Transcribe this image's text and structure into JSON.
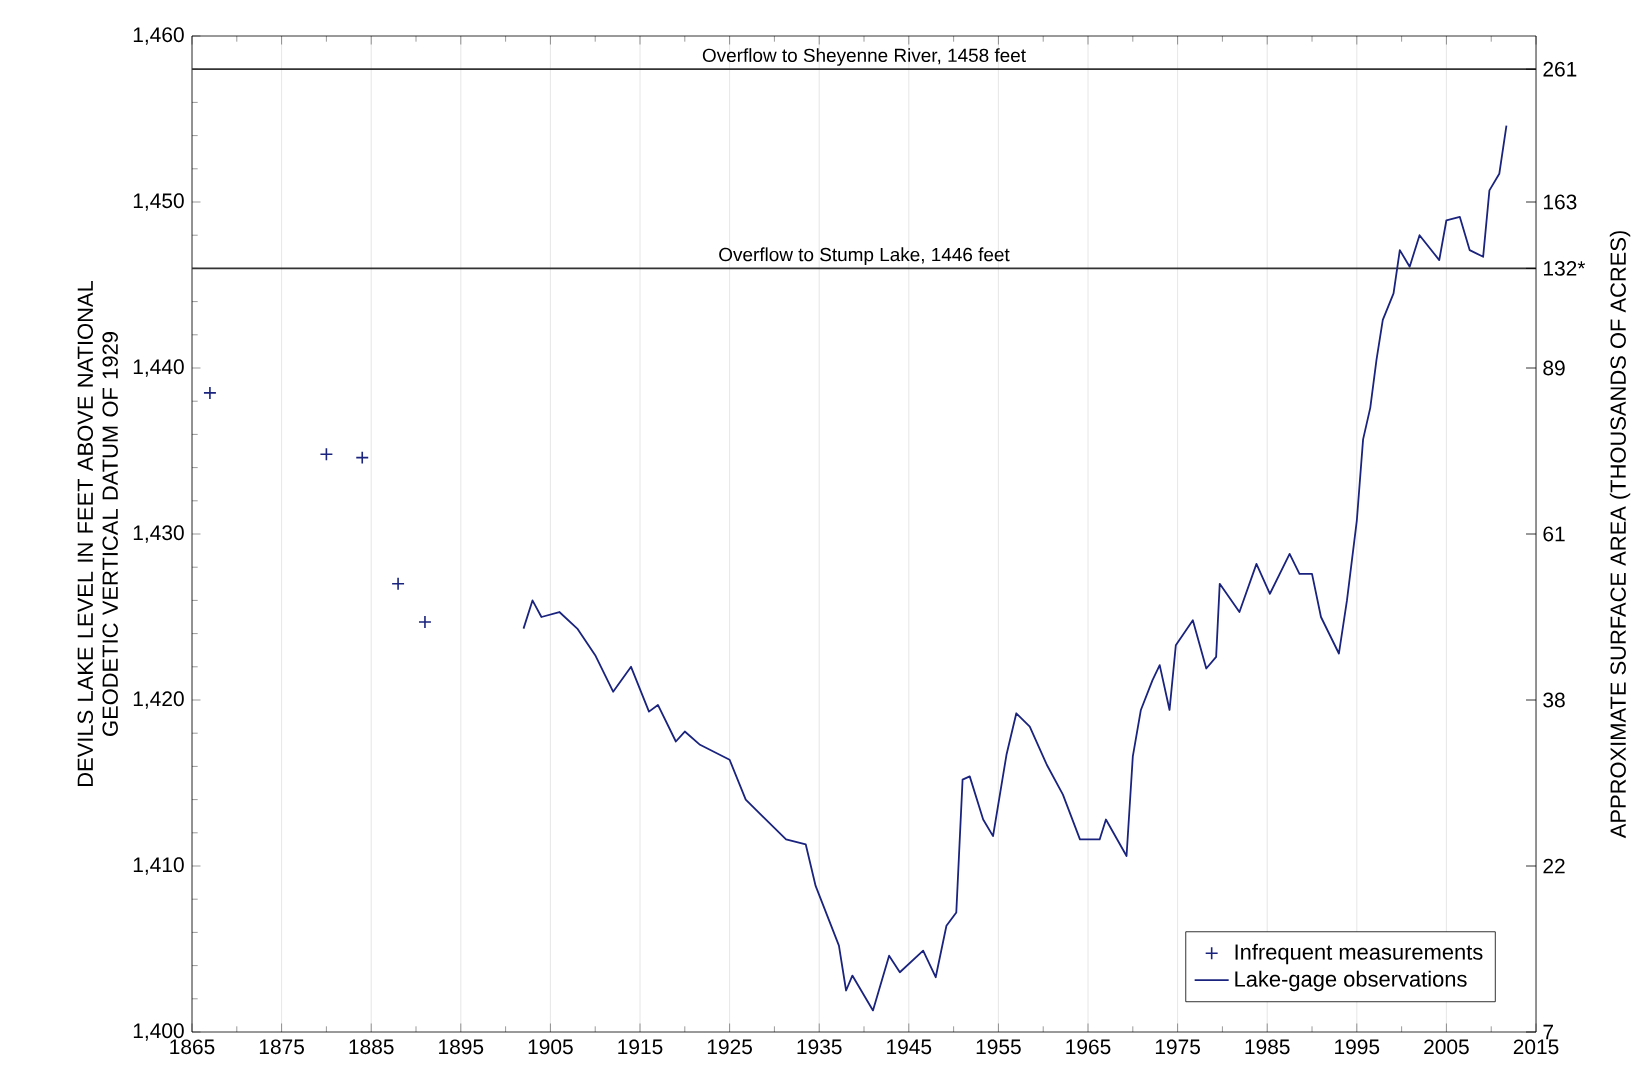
{
  "chart_data": {
    "type": "line",
    "xlabel": null,
    "ylabel": "DEVILS LAKE LEVEL IN FEET ABOVE NATIONAL GEODETIC VERTICAL DATUM OF 1929",
    "y2label": "APPROXIMATE SURFACE AREA (THOUSANDS OF ACRES)",
    "xlim": [
      1865,
      2015
    ],
    "xticks": [
      1865,
      1875,
      1885,
      1895,
      1905,
      1915,
      1925,
      1935,
      1945,
      1955,
      1965,
      1975,
      1985,
      1995,
      2005,
      2015
    ],
    "ylim": [
      1400,
      1460
    ],
    "yticks": [
      {
        "value": 1400,
        "label": "1,400"
      },
      {
        "value": 1410,
        "label": "1,410"
      },
      {
        "value": 1420,
        "label": "1,420"
      },
      {
        "value": 1430,
        "label": "1,430"
      },
      {
        "value": 1440,
        "label": "1,440"
      },
      {
        "value": 1450,
        "label": "1,450"
      },
      {
        "value": 1460,
        "label": "1,460"
      }
    ],
    "annotations": [
      "7",
      "22",
      "38",
      "61",
      "89",
      "132*",
      "163",
      "261"
    ],
    "grid": "x",
    "legend": "bottom right",
    "ref_lines": [
      {
        "axis": "y",
        "value": 1458,
        "label": "Overflow to Sheyenne River, 1458 feet",
        "color": "#333333"
      },
      {
        "axis": "y",
        "value": 1446,
        "label": "Overflow to Stump Lake, 1446 feet",
        "color": "#333333"
      }
    ],
    "series": [
      {
        "name": "Infrequent measurements",
        "type": "scatter",
        "marker": "cross",
        "color": "#1a237e",
        "x": [
          1867,
          1880,
          1884,
          1888,
          1891
        ],
        "values": [
          1438.5,
          1434.8,
          1434.6,
          1427,
          1424.7
        ]
      },
      {
        "name": "Lake-gage observations",
        "color": "#1a237e",
        "x": [
          1902,
          1903,
          1904,
          1906,
          1908,
          1910,
          1912,
          1914,
          1916,
          1917,
          1919,
          1920,
          1921.7,
          1925,
          1926.8,
          1931.3,
          1933.5,
          1934.6,
          1937.2,
          1938,
          1938.7,
          1941,
          1942.8,
          1944,
          1946.6,
          1948,
          1949.2,
          1950.3,
          1951,
          1951.8,
          1953.3,
          1954.4,
          1955.9,
          1957,
          1958.5,
          1960.4,
          1962.2,
          1964.1,
          1966.3,
          1967,
          1969.3,
          1970,
          1970.9,
          1972.2,
          1973,
          1974.1,
          1974.8,
          1976.7,
          1978.2,
          1979.3,
          1979.7,
          1981.9,
          1983.8,
          1985.3,
          1987.5,
          1988.6,
          1990,
          1991,
          1993,
          1993.9,
          1995,
          1995.7,
          1996.5,
          1997.2,
          1997.9,
          1999.1,
          1999.8,
          2000.9,
          2002,
          2004.2,
          2005,
          2006.5,
          2007.6,
          2009.1,
          2009.8,
          2010.9,
          2011.7
        ],
        "values": [
          1424.3,
          1426,
          1425,
          1425.3,
          1424.3,
          1422.7,
          1420.5,
          1422,
          1419.3,
          1419.7,
          1417.5,
          1418.1,
          1417.3,
          1416.4,
          1414,
          1411.6,
          1411.3,
          1408.8,
          1405.2,
          1402.5,
          1403.4,
          1401.3,
          1404.6,
          1403.6,
          1404.9,
          1403.3,
          1406.4,
          1407.2,
          1415.2,
          1415.4,
          1412.8,
          1411.8,
          1416.7,
          1419.2,
          1418.4,
          1416.1,
          1414.3,
          1411.6,
          1411.6,
          1412.8,
          1410.6,
          1416.6,
          1419.4,
          1421.2,
          1422.1,
          1419.4,
          1423.3,
          1424.8,
          1421.9,
          1422.6,
          1427,
          1425.3,
          1428.2,
          1426.4,
          1428.8,
          1427.6,
          1427.6,
          1425,
          1422.8,
          1426,
          1430.8,
          1435.7,
          1437.6,
          1440.5,
          1442.9,
          1444.5,
          1447.1,
          1446.1,
          1448,
          1446.5,
          1448.9,
          1449.1,
          1447.1,
          1446.7,
          1450.7,
          1451.7,
          1454.6
        ]
      }
    ]
  }
}
